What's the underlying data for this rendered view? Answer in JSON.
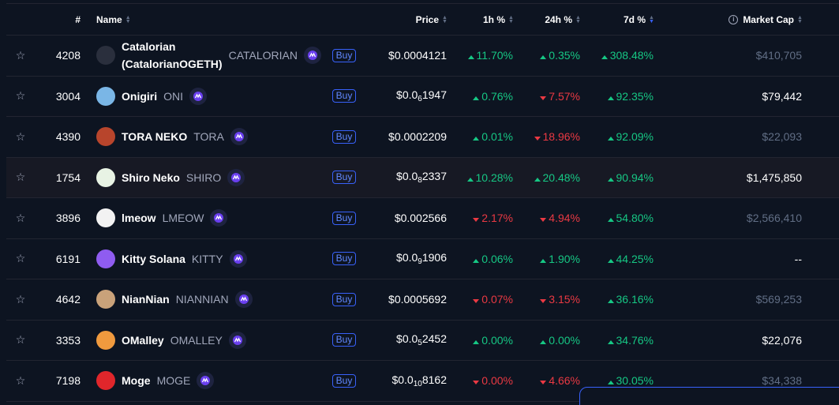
{
  "header": {
    "rank": "#",
    "name": "Name",
    "price": "Price",
    "h1": "1h %",
    "h24": "24h %",
    "d7": "7d %",
    "market_cap": "Market Cap"
  },
  "rows": [
    {
      "rank": "4208",
      "name_line1": "Catalorian",
      "name_line2": "(CatalorianOGETH)",
      "symbol": "CATALORIAN",
      "buy": "Buy",
      "price": "$0.0004121",
      "h1": "11.70%",
      "h1_dir": "up",
      "h24": "0.35%",
      "h24_dir": "up",
      "d7": "308.48%",
      "d7_dir": "up",
      "market_cap": "$410,705",
      "mc_style": "dim",
      "avatar_icon": "cat-warrior-avatar",
      "avatar_color": "#2a2f3d"
    },
    {
      "rank": "3004",
      "name": "Onigiri",
      "symbol": "ONI",
      "buy": "Buy",
      "price_prefix": "$0.0",
      "price_sub": "6",
      "price_rest": "1947",
      "h1": "0.76%",
      "h1_dir": "up",
      "h24": "7.57%",
      "h24_dir": "down",
      "d7": "92.35%",
      "d7_dir": "up",
      "market_cap": "$79,442",
      "mc_style": "bright",
      "avatar_icon": "onigiri-cat-avatar",
      "avatar_color": "#7ab6e6"
    },
    {
      "rank": "4390",
      "name": "TORA NEKO",
      "symbol": "TORA",
      "buy": "Buy",
      "price": "$0.0002209",
      "h1": "0.01%",
      "h1_dir": "up",
      "h24": "18.96%",
      "h24_dir": "down",
      "d7": "92.09%",
      "d7_dir": "up",
      "market_cap": "$22,093",
      "mc_style": "dim",
      "avatar_icon": "tiger-cat-avatar",
      "avatar_color": "#b8452c"
    },
    {
      "rank": "1754",
      "name": "Shiro Neko",
      "symbol": "SHIRO",
      "buy": "Buy",
      "price_prefix": "$0.0",
      "price_sub": "8",
      "price_rest": "2337",
      "h1": "10.28%",
      "h1_dir": "up",
      "h24": "20.48%",
      "h24_dir": "up",
      "d7": "90.94%",
      "d7_dir": "up",
      "market_cap": "$1,475,850",
      "mc_style": "bright",
      "avatar_icon": "white-cat-avatar",
      "avatar_color": "#e8f3e4"
    },
    {
      "rank": "3896",
      "name": "lmeow",
      "symbol": "LMEOW",
      "buy": "Buy",
      "price": "$0.002566",
      "h1": "2.17%",
      "h1_dir": "down",
      "h24": "4.94%",
      "h24_dir": "down",
      "d7": "54.80%",
      "d7_dir": "up",
      "market_cap": "$2,566,410",
      "mc_style": "dim",
      "avatar_icon": "black-cat-avatar",
      "avatar_color": "#f2f2f2"
    },
    {
      "rank": "6191",
      "name": "Kitty Solana",
      "symbol": "KITTY",
      "buy": "Buy",
      "price_prefix": "$0.0",
      "price_sub": "9",
      "price_rest": "1906",
      "h1": "0.06%",
      "h1_dir": "up",
      "h24": "1.90%",
      "h24_dir": "up",
      "d7": "44.25%",
      "d7_dir": "up",
      "market_cap": "--",
      "mc_style": "bright",
      "avatar_icon": "solana-cat-avatar",
      "avatar_color": "#8f5cf0"
    },
    {
      "rank": "4642",
      "name": "NianNian",
      "symbol": "NIANNIAN",
      "buy": "Buy",
      "price": "$0.0005692",
      "h1": "0.07%",
      "h1_dir": "down",
      "h24": "3.15%",
      "h24_dir": "down",
      "d7": "36.16%",
      "d7_dir": "up",
      "market_cap": "$569,253",
      "mc_style": "dim",
      "avatar_icon": "tabby-cat-avatar",
      "avatar_color": "#c9a27a"
    },
    {
      "rank": "3353",
      "name": "OMalley",
      "symbol": "OMALLEY",
      "buy": "Buy",
      "price_prefix": "$0.0",
      "price_sub": "5",
      "price_rest": "2452",
      "h1": "0.00%",
      "h1_dir": "up",
      "h24": "0.00%",
      "h24_dir": "up",
      "d7": "34.76%",
      "d7_dir": "up",
      "market_cap": "$22,076",
      "mc_style": "bright",
      "avatar_icon": "orange-cat-avatar",
      "avatar_color": "#f09a3e"
    },
    {
      "rank": "7198",
      "name": "Moge",
      "symbol": "MOGE",
      "buy": "Buy",
      "price_prefix": "$0.0",
      "price_sub": "10",
      "price_rest": "8162",
      "h1": "0.00%",
      "h1_dir": "down",
      "h24": "4.66%",
      "h24_dir": "down",
      "d7": "30.05%",
      "d7_dir": "up",
      "market_cap": "$34,338",
      "mc_style": "dim",
      "avatar_icon": "moge-cat-avatar",
      "avatar_color": "#e0262b"
    }
  ],
  "colors": {
    "up": "#16c784",
    "down": "#ea3943",
    "accent": "#3861fb",
    "background": "#0d1421"
  },
  "icons": {
    "favorite": "star-outline-icon",
    "chain": "chain-logo-icon",
    "info": "info-icon",
    "sort": "sort-icon"
  }
}
